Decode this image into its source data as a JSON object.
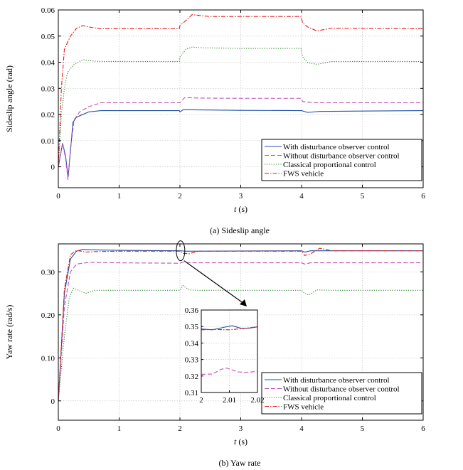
{
  "chart_data": [
    {
      "type": "line",
      "caption": "(a) Sideslip angle",
      "xlabel": "t (s)",
      "ylabel": "Sideslip angle (rad)",
      "xlim": [
        0,
        6
      ],
      "ylim": [
        -0.008,
        0.06
      ],
      "xticks": [
        "0",
        "1",
        "2",
        "3",
        "4",
        "5",
        "6"
      ],
      "yticks": [
        "0",
        "0.01",
        "0.02",
        "0.03",
        "0.04",
        "0.05",
        "0.06"
      ],
      "grid": true,
      "legend_position": "bottom-right",
      "series": [
        {
          "name": "With disturbance observer control",
          "color": "#1f4fa8",
          "dash": "solid",
          "points": [
            [
              0,
              0
            ],
            [
              0.07,
              0.009
            ],
            [
              0.12,
              0.004
            ],
            [
              0.16,
              -0.004
            ],
            [
              0.2,
              0.006
            ],
            [
              0.24,
              0.017
            ],
            [
              0.3,
              0.019
            ],
            [
              0.4,
              0.02
            ],
            [
              0.5,
              0.021
            ],
            [
              0.7,
              0.0215
            ],
            [
              1,
              0.0215
            ],
            [
              1.99,
              0.0215
            ],
            [
              2.0,
              0.021
            ],
            [
              2.05,
              0.0218
            ],
            [
              2.2,
              0.0218
            ],
            [
              3,
              0.0216
            ],
            [
              3.99,
              0.0215
            ],
            [
              4.0,
              0.0215
            ],
            [
              4.1,
              0.0208
            ],
            [
              4.3,
              0.0212
            ],
            [
              6,
              0.0215
            ]
          ]
        },
        {
          "name": "Without disturbance observer control",
          "color": "#c050b8",
          "dash": "dashed",
          "points": [
            [
              0,
              0
            ],
            [
              0.07,
              0.009
            ],
            [
              0.12,
              0.003
            ],
            [
              0.16,
              -0.005
            ],
            [
              0.2,
              0.007
            ],
            [
              0.26,
              0.018
            ],
            [
              0.35,
              0.021
            ],
            [
              0.5,
              0.023
            ],
            [
              0.7,
              0.0245
            ],
            [
              1,
              0.0245
            ],
            [
              1.99,
              0.0245
            ],
            [
              2.0,
              0.0245
            ],
            [
              2.08,
              0.0265
            ],
            [
              2.3,
              0.0263
            ],
            [
              3,
              0.0262
            ],
            [
              3.99,
              0.0262
            ],
            [
              4.02,
              0.025
            ],
            [
              4.2,
              0.0245
            ],
            [
              6,
              0.0245
            ]
          ]
        },
        {
          "name": "Classical proportional control",
          "color": "#2a8a2a",
          "dash": "dotted",
          "points": [
            [
              0,
              0
            ],
            [
              0.05,
              0.02
            ],
            [
              0.1,
              0.03
            ],
            [
              0.15,
              0.036
            ],
            [
              0.25,
              0.039
            ],
            [
              0.4,
              0.041
            ],
            [
              0.55,
              0.0405
            ],
            [
              0.7,
              0.0403
            ],
            [
              1,
              0.0403
            ],
            [
              1.99,
              0.0403
            ],
            [
              2.0,
              0.042
            ],
            [
              2.1,
              0.045
            ],
            [
              2.2,
              0.0458
            ],
            [
              2.4,
              0.0455
            ],
            [
              3,
              0.0453
            ],
            [
              3.99,
              0.0453
            ],
            [
              4.02,
              0.042
            ],
            [
              4.1,
              0.0398
            ],
            [
              4.25,
              0.0392
            ],
            [
              4.5,
              0.0403
            ],
            [
              6,
              0.0403
            ]
          ]
        },
        {
          "name": "FWS vehicle",
          "color": "#e02020",
          "dash": "dashdot",
          "points": [
            [
              0,
              0
            ],
            [
              0.05,
              0.03
            ],
            [
              0.1,
              0.045
            ],
            [
              0.2,
              0.05
            ],
            [
              0.3,
              0.053
            ],
            [
              0.4,
              0.054
            ],
            [
              0.55,
              0.0533
            ],
            [
              0.7,
              0.0528
            ],
            [
              1,
              0.0528
            ],
            [
              1.99,
              0.0528
            ],
            [
              2.0,
              0.054
            ],
            [
              2.1,
              0.056
            ],
            [
              2.2,
              0.0582
            ],
            [
              2.35,
              0.0578
            ],
            [
              2.5,
              0.0575
            ],
            [
              3,
              0.0575
            ],
            [
              3.99,
              0.0575
            ],
            [
              4.02,
              0.055
            ],
            [
              4.1,
              0.0535
            ],
            [
              4.25,
              0.052
            ],
            [
              4.5,
              0.053
            ],
            [
              6,
              0.0528
            ]
          ]
        }
      ]
    },
    {
      "type": "line",
      "caption": "(b) Yaw rate",
      "xlabel": "t (s)",
      "ylabel": "Yaw rate (rad/s)",
      "xlim": [
        0,
        6
      ],
      "ylim": [
        -0.045,
        0.365
      ],
      "xticks": [
        "0",
        "1",
        "2",
        "3",
        "4",
        "5",
        "6"
      ],
      "yticks": [
        "0",
        "0.10",
        "0.20",
        "0.30"
      ],
      "grid": true,
      "legend_position": "bottom-right",
      "series": [
        {
          "name": "With disturbance observer control",
          "color": "#1f4fa8",
          "dash": "solid",
          "points": [
            [
              0,
              0
            ],
            [
              0.1,
              0.25
            ],
            [
              0.2,
              0.33
            ],
            [
              0.3,
              0.348
            ],
            [
              0.4,
              0.352
            ],
            [
              0.6,
              0.351
            ],
            [
              1,
              0.35
            ],
            [
              2,
              0.349
            ],
            [
              2.1,
              0.348
            ],
            [
              4,
              0.349
            ],
            [
              4.05,
              0.346
            ],
            [
              4.15,
              0.349
            ],
            [
              6,
              0.349
            ]
          ]
        },
        {
          "name": "Without disturbance observer control",
          "color": "#c050b8",
          "dash": "dashed",
          "points": [
            [
              0,
              0
            ],
            [
              0.1,
              0.22
            ],
            [
              0.2,
              0.3
            ],
            [
              0.3,
              0.318
            ],
            [
              0.5,
              0.322
            ],
            [
              1,
              0.321
            ],
            [
              2,
              0.32
            ],
            [
              2.05,
              0.323
            ],
            [
              2.15,
              0.321
            ],
            [
              4,
              0.321
            ],
            [
              4.05,
              0.318
            ],
            [
              4.15,
              0.321
            ],
            [
              6,
              0.321
            ]
          ]
        },
        {
          "name": "Classical proportional control",
          "color": "#2a8a2a",
          "dash": "dotted",
          "points": [
            [
              0,
              0
            ],
            [
              0.1,
              0.15
            ],
            [
              0.18,
              0.24
            ],
            [
              0.25,
              0.262
            ],
            [
              0.35,
              0.256
            ],
            [
              0.45,
              0.25
            ],
            [
              0.6,
              0.257
            ],
            [
              1,
              0.257
            ],
            [
              2,
              0.257
            ],
            [
              2.05,
              0.268
            ],
            [
              2.15,
              0.258
            ],
            [
              2.3,
              0.257
            ],
            [
              4,
              0.257
            ],
            [
              4.05,
              0.25
            ],
            [
              4.12,
              0.246
            ],
            [
              4.25,
              0.258
            ],
            [
              4.5,
              0.257
            ],
            [
              6,
              0.257
            ]
          ]
        },
        {
          "name": "FWS vehicle",
          "color": "#e02020",
          "dash": "dashdot",
          "points": [
            [
              0,
              0
            ],
            [
              0.1,
              0.26
            ],
            [
              0.2,
              0.34
            ],
            [
              0.3,
              0.35
            ],
            [
              0.45,
              0.346
            ],
            [
              0.6,
              0.347
            ],
            [
              1,
              0.348
            ],
            [
              2,
              0.348
            ],
            [
              2.05,
              0.343
            ],
            [
              2.15,
              0.342
            ],
            [
              2.3,
              0.348
            ],
            [
              4,
              0.348
            ],
            [
              4.05,
              0.338
            ],
            [
              4.15,
              0.342
            ],
            [
              4.3,
              0.355
            ],
            [
              4.5,
              0.349
            ],
            [
              6,
              0.349
            ]
          ]
        }
      ],
      "inset": {
        "xlim": [
          2,
          2.02
        ],
        "ylim": [
          0.31,
          0.36
        ],
        "xticks": [
          "2",
          "2.01",
          "2.02"
        ],
        "yticks": [
          "0.31",
          "0.32",
          "0.33",
          "0.34",
          "0.35",
          "0.36"
        ],
        "series": [
          {
            "name": "With disturbance observer control",
            "points": [
              [
                2,
                0.3485
              ],
              [
                2.004,
                0.348
              ],
              [
                2.008,
                0.3495
              ],
              [
                2.011,
                0.3505
              ],
              [
                2.014,
                0.349
              ],
              [
                2.017,
                0.349
              ],
              [
                2.02,
                0.3498
              ]
            ]
          },
          {
            "name": "Without disturbance observer control",
            "points": [
              [
                2,
                0.321
              ],
              [
                2.004,
                0.3212
              ],
              [
                2.007,
                0.324
              ],
              [
                2.009,
                0.3248
              ],
              [
                2.013,
                0.3225
              ],
              [
                2.016,
                0.3222
              ],
              [
                2.02,
                0.3228
              ]
            ]
          },
          {
            "name": "FWS vehicle",
            "points": [
              [
                2,
                0.348
              ],
              [
                2.005,
                0.3482
              ],
              [
                2.01,
                0.348
              ],
              [
                2.015,
                0.3488
              ],
              [
                2.02,
                0.3498
              ]
            ]
          }
        ]
      }
    }
  ]
}
